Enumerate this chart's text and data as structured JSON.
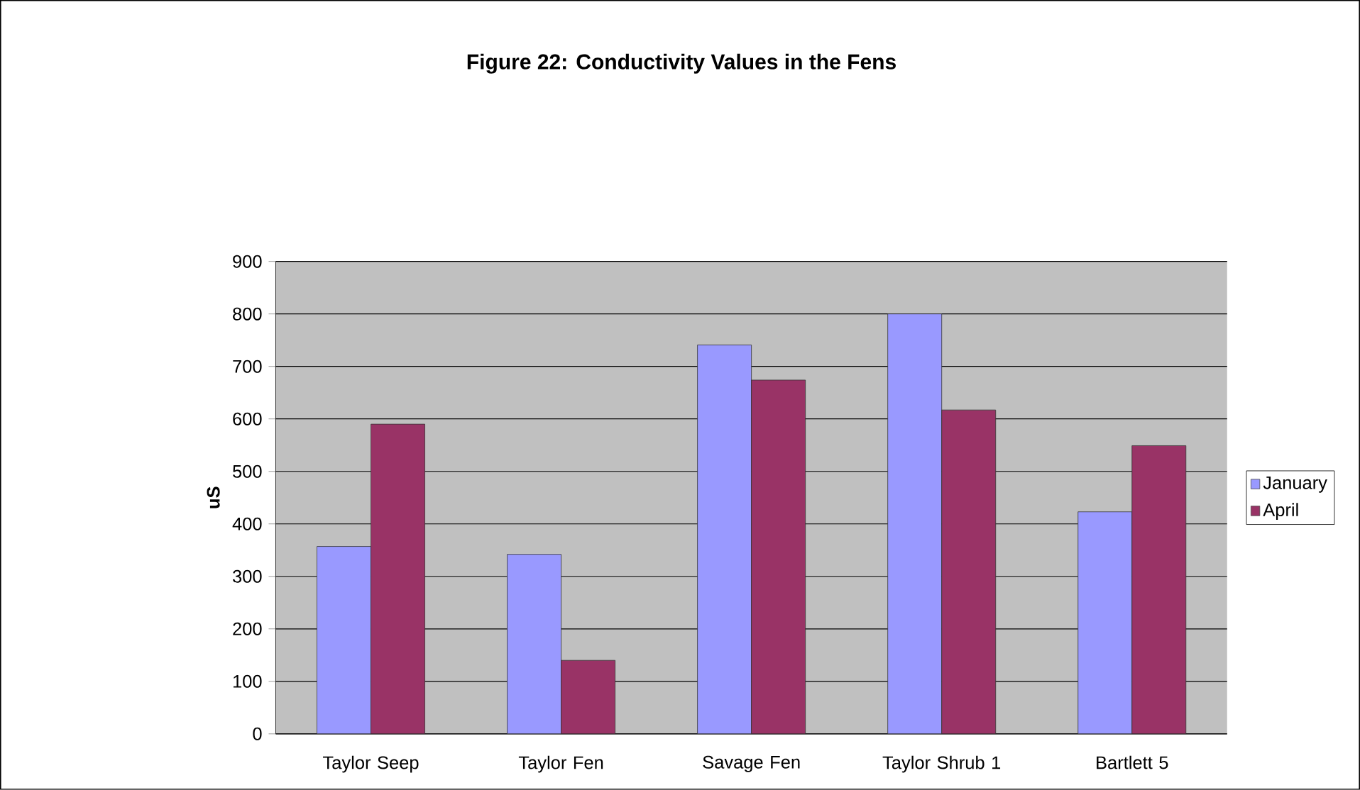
{
  "chart_data": {
    "type": "bar",
    "title": "Figure 22: Conductivity Values in the Fens",
    "ylabel": "uS",
    "categories": [
      "Taylor Seep",
      "Taylor Fen",
      "Savage Fen",
      "Taylor Shrub 1",
      "Bartlett 5"
    ],
    "series": [
      {
        "name": "January",
        "color": "#9999ff",
        "values": [
          357,
          342,
          741,
          800,
          423
        ]
      },
      {
        "name": "April",
        "color": "#993366",
        "values": [
          590,
          140,
          674,
          617,
          549
        ]
      }
    ],
    "ylim": [
      0,
      900
    ],
    "yticks": [
      0,
      100,
      200,
      300,
      400,
      500,
      600,
      700,
      800,
      900
    ],
    "grid": "y",
    "legend": "right"
  }
}
